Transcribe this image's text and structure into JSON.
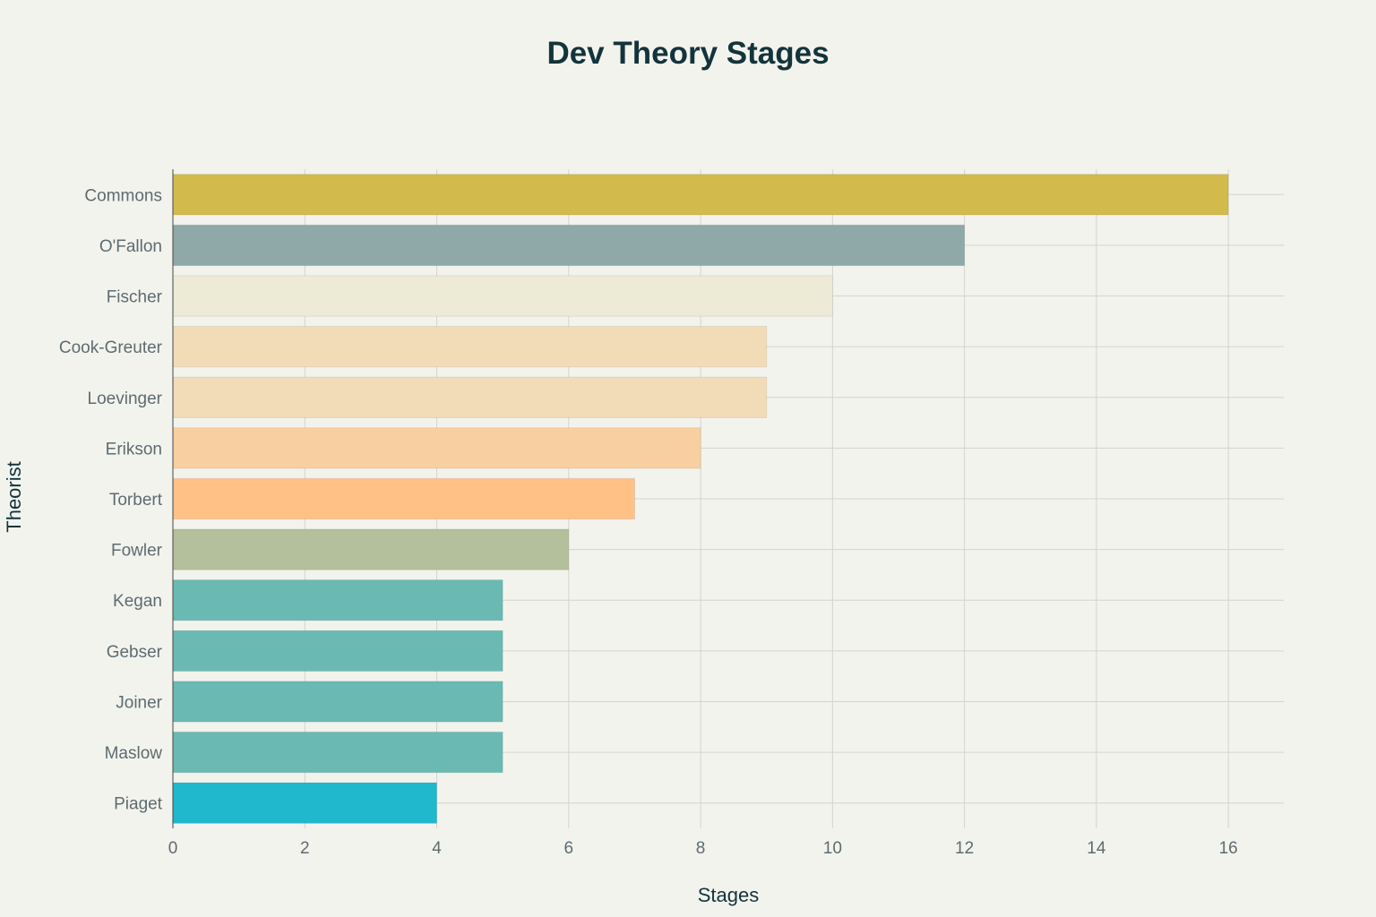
{
  "chart_data": {
    "type": "bar",
    "orientation": "horizontal",
    "title": "Dev Theory Stages",
    "xlabel": "Stages",
    "ylabel": "Theorist",
    "xlim": [
      0,
      16.84
    ],
    "xticks": [
      0,
      2,
      4,
      6,
      8,
      10,
      12,
      14,
      16
    ],
    "grid": true,
    "legend": "none",
    "categories": [
      "Commons",
      "O'Fallon",
      "Fischer",
      "Cook-Greuter",
      "Loevinger",
      "Erikson",
      "Torbert",
      "Fowler",
      "Kegan",
      "Gebser",
      "Joiner",
      "Maslow",
      "Piaget"
    ],
    "values": [
      16,
      12,
      10,
      9,
      9,
      8,
      7,
      6,
      5,
      5,
      5,
      5,
      4
    ],
    "colors": [
      "#D2BA4C",
      "#8FA8A8",
      "#EDEBD6",
      "#F2DCB8",
      "#F2DCB8",
      "#F8CFA0",
      "#FFC185",
      "#B4BF9B",
      "#6ABAB3",
      "#6ABAB3",
      "#6ABAB3",
      "#6ABAB3",
      "#1FB8CD"
    ],
    "background": "#F3F3EE"
  }
}
